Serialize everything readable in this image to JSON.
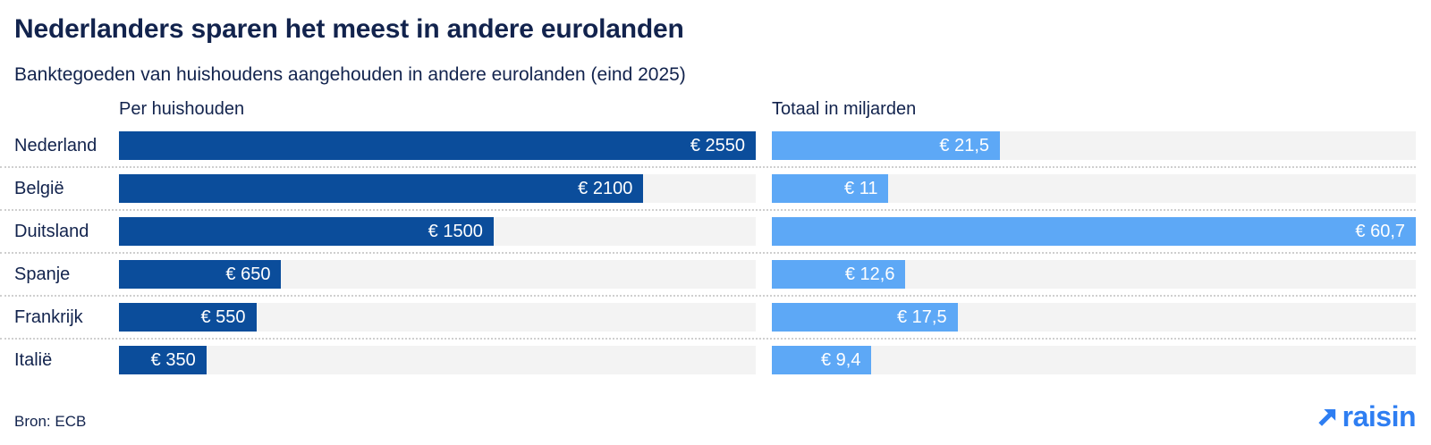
{
  "header": {
    "title": "Nederlanders sparen het meest in andere eurolanden",
    "subtitle": "Banktegoeden van huishoudens aangehouden in andere eurolanden (eind 2025)"
  },
  "chart_data": {
    "type": "bar",
    "orientation": "horizontal",
    "categories": [
      "Nederland",
      "België",
      "Duitsland",
      "Spanje",
      "Frankrijk",
      "Italië"
    ],
    "series": [
      {
        "name": "Per huishouden",
        "unit": "EUR per huishouden",
        "values": [
          2550,
          2100,
          1500,
          650,
          550,
          350
        ],
        "display_values": [
          "€ 2550",
          "€ 2100",
          "€ 1500",
          "€ 650",
          "€ 550",
          "€ 350"
        ],
        "xmax": 2550,
        "color": "#0b4d9b"
      },
      {
        "name": "Totaal in miljarden",
        "unit": "EUR miljard",
        "values": [
          21.5,
          11,
          60.7,
          12.6,
          17.5,
          9.4
        ],
        "display_values": [
          "€ 21,5",
          "€ 11",
          "€ 60,7",
          "€ 12,6",
          "€ 17,5",
          "€ 9,4"
        ],
        "xmax": 60.7,
        "color": "#5da8f6"
      }
    ],
    "grid": false,
    "legend_position": "column-headers",
    "track_color": "#f3f3f3",
    "value_labels": "inside-right-white"
  },
  "footer": {
    "source": "Bron: ECB",
    "logo_text": "raisin",
    "logo_color": "#2e7ef2"
  },
  "colors": {
    "title_text": "#12234d",
    "bar_dark": "#0b4d9b",
    "bar_light": "#5da8f6",
    "track": "#f3f3f3",
    "separator": "#cfcfcf",
    "value_text": "#ffffff"
  }
}
